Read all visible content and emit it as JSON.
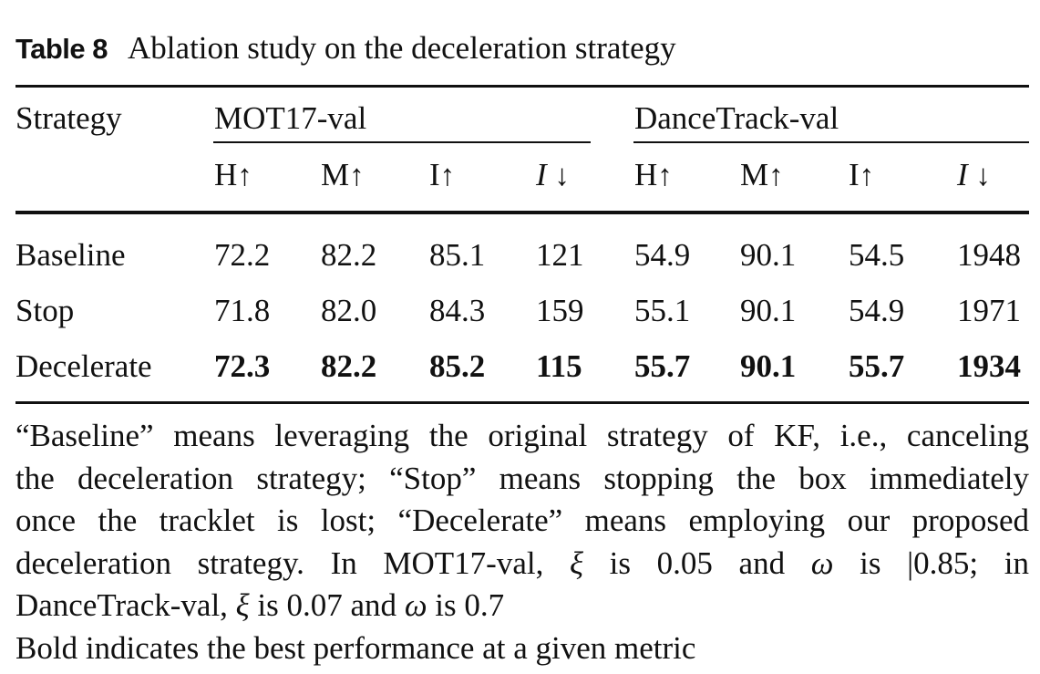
{
  "caption": {
    "label": "Table 8",
    "title": "Ablation study on the deceleration strategy"
  },
  "header": {
    "stub": "Strategy",
    "groups": [
      "MOT17-val",
      "DanceTrack-val"
    ],
    "columns": [
      {
        "name": "H",
        "arrow": "↑"
      },
      {
        "name": "M",
        "arrow": "↑"
      },
      {
        "name": "I",
        "arrow": "↑"
      },
      {
        "name": "I",
        "arrow": "↓"
      },
      {
        "name": "H",
        "arrow": "↑"
      },
      {
        "name": "M",
        "arrow": "↑"
      },
      {
        "name": "I",
        "arrow": "↑"
      },
      {
        "name": "I",
        "arrow": "↓"
      }
    ]
  },
  "rows": [
    {
      "label": "Baseline",
      "values": [
        "72.2",
        "82.2",
        "85.1",
        "121",
        "54.9",
        "90.1",
        "54.5",
        "1948"
      ]
    },
    {
      "label": "Stop",
      "values": [
        "71.8",
        "82.0",
        "84.3",
        "159",
        "55.1",
        "90.1",
        "54.9",
        "1971"
      ]
    },
    {
      "label": "Decelerate",
      "values": [
        "72.3",
        "82.2",
        "85.2",
        "115",
        "55.7",
        "90.1",
        "55.7",
        "1934"
      ]
    }
  ],
  "notes": {
    "line1": "“Baseline” means leveraging the original strategy of KF, i.e., canceling",
    "line2": "the deceleration strategy; “Stop” means stopping the box immediately",
    "line3": "once the tracklet is lost; “Decelerate” means employing our proposed",
    "line4a": "deceleration strategy. In MOT17-val,",
    "xi": "ξ",
    "line4b": "is 0.05 and",
    "omega": "ω",
    "line4c": "is |0.85; in",
    "line5a": "DanceTrack-val,",
    "line5b": "is 0.07 and",
    "line5c": "is 0.7",
    "line6": "Bold indicates the best performance at a given metric"
  }
}
